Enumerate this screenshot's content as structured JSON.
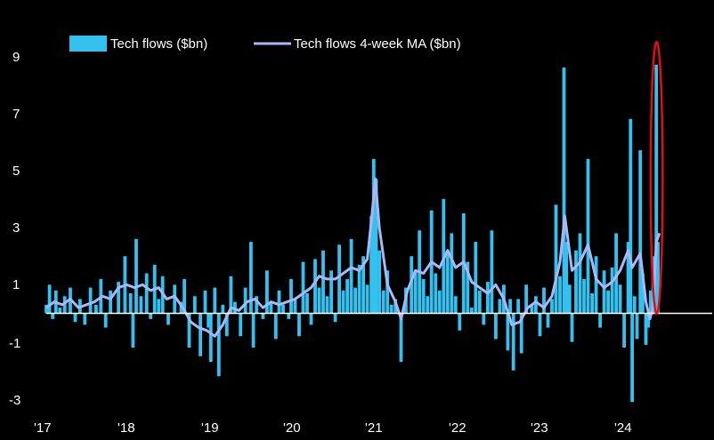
{
  "chart_data": {
    "type": "bar",
    "title": "",
    "xlabel": "",
    "ylabel": "",
    "ylim": [
      -3.4,
      10
    ],
    "y_ticks": [
      "9",
      "7",
      "5",
      "3",
      "1",
      "-1",
      "-3"
    ],
    "x_ticks": [
      "'17",
      "'18",
      "'19",
      "'20",
      "'21",
      "'22",
      "'23",
      "'24"
    ],
    "x_range": [
      2017.0,
      2024.72
    ],
    "legend": {
      "position": "top-left",
      "entries": [
        {
          "label": "Tech flows ($bn)",
          "color": "#33C1F0"
        },
        {
          "label": "Tech flows 4-week MA ($bn)",
          "color": "#A9B8F5"
        }
      ]
    },
    "annotation": {
      "shape": "ellipse",
      "color": "#E01010",
      "target": "latest weekly flow spike",
      "x_range": [
        2024.53,
        2024.68
      ]
    },
    "series": [
      {
        "name": "Tech flows ($bn)",
        "kind": "bar",
        "color": "#33C1F0",
        "keypoints": [
          [
            2017.0,
            0.3
          ],
          [
            2017.04,
            1.0
          ],
          [
            2017.08,
            -0.2
          ],
          [
            2017.12,
            0.8
          ],
          [
            2017.17,
            0.2
          ],
          [
            2017.23,
            0.6
          ],
          [
            2017.3,
            0.9
          ],
          [
            2017.36,
            -0.3
          ],
          [
            2017.42,
            0.5
          ],
          [
            2017.48,
            -0.4
          ],
          [
            2017.55,
            0.9
          ],
          [
            2017.62,
            0.3
          ],
          [
            2017.68,
            1.2
          ],
          [
            2017.74,
            -0.5
          ],
          [
            2017.8,
            0.8
          ],
          [
            2017.9,
            1.1
          ],
          [
            2017.98,
            2.0
          ],
          [
            2018.05,
            0.7
          ],
          [
            2018.08,
            -1.2
          ],
          [
            2018.12,
            2.6
          ],
          [
            2018.18,
            0.6
          ],
          [
            2018.25,
            1.4
          ],
          [
            2018.3,
            -0.2
          ],
          [
            2018.35,
            1.7
          ],
          [
            2018.4,
            0.5
          ],
          [
            2018.45,
            1.3
          ],
          [
            2018.52,
            -0.4
          ],
          [
            2018.6,
            1.0
          ],
          [
            2018.68,
            0.4
          ],
          [
            2018.72,
            1.2
          ],
          [
            2018.78,
            -1.2
          ],
          [
            2018.85,
            0.6
          ],
          [
            2018.92,
            -1.5
          ],
          [
            2018.98,
            0.8
          ],
          [
            2019.02,
            -0.5
          ],
          [
            2019.05,
            -1.7
          ],
          [
            2019.1,
            0.9
          ],
          [
            2019.15,
            -2.2
          ],
          [
            2019.2,
            0.3
          ],
          [
            2019.25,
            -0.8
          ],
          [
            2019.3,
            1.3
          ],
          [
            2019.35,
            0.4
          ],
          [
            2019.42,
            -0.8
          ],
          [
            2019.48,
            0.9
          ],
          [
            2019.55,
            2.5
          ],
          [
            2019.58,
            -1.2
          ],
          [
            2019.62,
            0.6
          ],
          [
            2019.7,
            -0.2
          ],
          [
            2019.75,
            1.5
          ],
          [
            2019.8,
            0.4
          ],
          [
            2019.86,
            -0.9
          ],
          [
            2019.9,
            0.8
          ],
          [
            2019.95,
            0.3
          ],
          [
            2020.02,
            -0.2
          ],
          [
            2020.05,
            1.2
          ],
          [
            2020.1,
            0.5
          ],
          [
            2020.15,
            -0.8
          ],
          [
            2020.2,
            1.8
          ],
          [
            2020.25,
            0.7
          ],
          [
            2020.3,
            -0.4
          ],
          [
            2020.35,
            1.9
          ],
          [
            2020.4,
            0.9
          ],
          [
            2020.45,
            2.2
          ],
          [
            2020.5,
            0.6
          ],
          [
            2020.55,
            1.5
          ],
          [
            2020.6,
            -0.3
          ],
          [
            2020.65,
            2.4
          ],
          [
            2020.7,
            0.8
          ],
          [
            2020.75,
            1.2
          ],
          [
            2020.8,
            2.6
          ],
          [
            2020.85,
            0.9
          ],
          [
            2020.9,
            1.7
          ],
          [
            2020.95,
            2.0
          ],
          [
            2021.0,
            1.0
          ],
          [
            2021.05,
            3.4
          ],
          [
            2021.08,
            5.4
          ],
          [
            2021.11,
            4.7
          ],
          [
            2021.15,
            2.2
          ],
          [
            2021.2,
            0.8
          ],
          [
            2021.25,
            1.5
          ],
          [
            2021.3,
            0.3
          ],
          [
            2021.35,
            0.5
          ],
          [
            2021.42,
            -1.7
          ],
          [
            2021.48,
            0.9
          ],
          [
            2021.55,
            2.0
          ],
          [
            2021.6,
            1.5
          ],
          [
            2021.65,
            2.9
          ],
          [
            2021.7,
            1.2
          ],
          [
            2021.75,
            0.6
          ],
          [
            2021.8,
            3.6
          ],
          [
            2021.85,
            1.4
          ],
          [
            2021.9,
            0.8
          ],
          [
            2021.95,
            4.0
          ],
          [
            2022.0,
            2.2
          ],
          [
            2022.05,
            2.8
          ],
          [
            2022.1,
            0.6
          ],
          [
            2022.15,
            -0.6
          ],
          [
            2022.2,
            3.5
          ],
          [
            2022.25,
            1.8
          ],
          [
            2022.3,
            0.2
          ],
          [
            2022.35,
            2.5
          ],
          [
            2022.4,
            0.8
          ],
          [
            2022.45,
            -0.4
          ],
          [
            2022.5,
            1.1
          ],
          [
            2022.55,
            2.9
          ],
          [
            2022.6,
            -0.9
          ],
          [
            2022.65,
            0.5
          ],
          [
            2022.7,
            1.0
          ],
          [
            2022.75,
            -1.3
          ],
          [
            2022.78,
            0.5
          ],
          [
            2022.82,
            -2.0
          ],
          [
            2022.88,
            0.5
          ],
          [
            2022.92,
            -1.4
          ],
          [
            2022.98,
            1.0
          ],
          [
            2023.05,
            0.3
          ],
          [
            2023.1,
            0.6
          ],
          [
            2023.15,
            -0.8
          ],
          [
            2023.2,
            0.9
          ],
          [
            2023.25,
            -0.5
          ],
          [
            2023.3,
            0.5
          ],
          [
            2023.35,
            3.8
          ],
          [
            2023.4,
            1.3
          ],
          [
            2023.45,
            8.6
          ],
          [
            2023.48,
            2.5
          ],
          [
            2023.52,
            1.0
          ],
          [
            2023.55,
            -1.0
          ],
          [
            2023.6,
            2.2
          ],
          [
            2023.65,
            2.8
          ],
          [
            2023.7,
            1.2
          ],
          [
            2023.75,
            5.4
          ],
          [
            2023.8,
            0.7
          ],
          [
            2023.85,
            2.0
          ],
          [
            2023.9,
            -0.5
          ],
          [
            2023.95,
            1.5
          ],
          [
            2024.0,
            0.8
          ],
          [
            2024.05,
            1.6
          ],
          [
            2024.1,
            2.8
          ],
          [
            2024.15,
            1.0
          ],
          [
            2024.2,
            -1.2
          ],
          [
            2024.25,
            2.5
          ],
          [
            2024.28,
            6.8
          ],
          [
            2024.3,
            -3.1
          ],
          [
            2024.33,
            0.6
          ],
          [
            2024.36,
            -0.9
          ],
          [
            2024.4,
            5.7
          ],
          [
            2024.43,
            1.4
          ],
          [
            2024.47,
            -1.1
          ],
          [
            2024.5,
            -0.5
          ],
          [
            2024.53,
            0.8
          ],
          [
            2024.56,
            2.0
          ],
          [
            2024.6,
            8.7
          ],
          [
            2024.62,
            2.5
          ],
          [
            2024.64,
            0.0
          ]
        ]
      },
      {
        "name": "Tech flows 4-week MA ($bn)",
        "kind": "line",
        "color": "#A9B8F5",
        "keypoints": [
          [
            2017.0,
            0.2
          ],
          [
            2017.1,
            0.4
          ],
          [
            2017.2,
            0.3
          ],
          [
            2017.3,
            0.5
          ],
          [
            2017.4,
            0.2
          ],
          [
            2017.5,
            0.3
          ],
          [
            2017.6,
            0.4
          ],
          [
            2017.7,
            0.6
          ],
          [
            2017.8,
            0.5
          ],
          [
            2017.9,
            0.9
          ],
          [
            2018.0,
            1.0
          ],
          [
            2018.1,
            0.9
          ],
          [
            2018.2,
            1.0
          ],
          [
            2018.3,
            0.8
          ],
          [
            2018.4,
            0.9
          ],
          [
            2018.5,
            0.5
          ],
          [
            2018.6,
            0.6
          ],
          [
            2018.7,
            0.2
          ],
          [
            2018.8,
            -0.3
          ],
          [
            2018.9,
            -0.5
          ],
          [
            2019.0,
            -0.6
          ],
          [
            2019.1,
            -0.8
          ],
          [
            2019.2,
            -0.4
          ],
          [
            2019.3,
            0.2
          ],
          [
            2019.4,
            0.1
          ],
          [
            2019.5,
            0.4
          ],
          [
            2019.6,
            0.5
          ],
          [
            2019.7,
            0.2
          ],
          [
            2019.8,
            0.4
          ],
          [
            2019.9,
            0.3
          ],
          [
            2020.0,
            0.4
          ],
          [
            2020.1,
            0.5
          ],
          [
            2020.2,
            0.7
          ],
          [
            2020.3,
            0.9
          ],
          [
            2020.4,
            1.3
          ],
          [
            2020.5,
            1.2
          ],
          [
            2020.6,
            1.2
          ],
          [
            2020.7,
            1.4
          ],
          [
            2020.8,
            1.6
          ],
          [
            2020.9,
            1.5
          ],
          [
            2021.0,
            1.9
          ],
          [
            2021.06,
            3.5
          ],
          [
            2021.1,
            4.7
          ],
          [
            2021.15,
            3.0
          ],
          [
            2021.25,
            1.0
          ],
          [
            2021.35,
            0.4
          ],
          [
            2021.42,
            -0.2
          ],
          [
            2021.5,
            0.8
          ],
          [
            2021.6,
            1.5
          ],
          [
            2021.7,
            1.4
          ],
          [
            2021.8,
            1.8
          ],
          [
            2021.9,
            1.6
          ],
          [
            2022.0,
            2.2
          ],
          [
            2022.1,
            1.6
          ],
          [
            2022.2,
            1.8
          ],
          [
            2022.3,
            1.1
          ],
          [
            2022.4,
            0.9
          ],
          [
            2022.5,
            0.7
          ],
          [
            2022.6,
            1.0
          ],
          [
            2022.7,
            0.5
          ],
          [
            2022.8,
            -0.4
          ],
          [
            2022.9,
            -0.3
          ],
          [
            2023.0,
            0.2
          ],
          [
            2023.1,
            0.4
          ],
          [
            2023.2,
            0.2
          ],
          [
            2023.3,
            0.6
          ],
          [
            2023.4,
            1.8
          ],
          [
            2023.46,
            3.4
          ],
          [
            2023.55,
            1.5
          ],
          [
            2023.65,
            1.8
          ],
          [
            2023.75,
            2.4
          ],
          [
            2023.85,
            1.2
          ],
          [
            2023.95,
            0.9
          ],
          [
            2024.05,
            1.1
          ],
          [
            2024.15,
            1.5
          ],
          [
            2024.25,
            2.2
          ],
          [
            2024.3,
            1.6
          ],
          [
            2024.4,
            2.1
          ],
          [
            2024.47,
            0.4
          ],
          [
            2024.52,
            -0.2
          ],
          [
            2024.56,
            0.2
          ],
          [
            2024.6,
            2.5
          ],
          [
            2024.64,
            2.8
          ]
        ]
      }
    ]
  }
}
